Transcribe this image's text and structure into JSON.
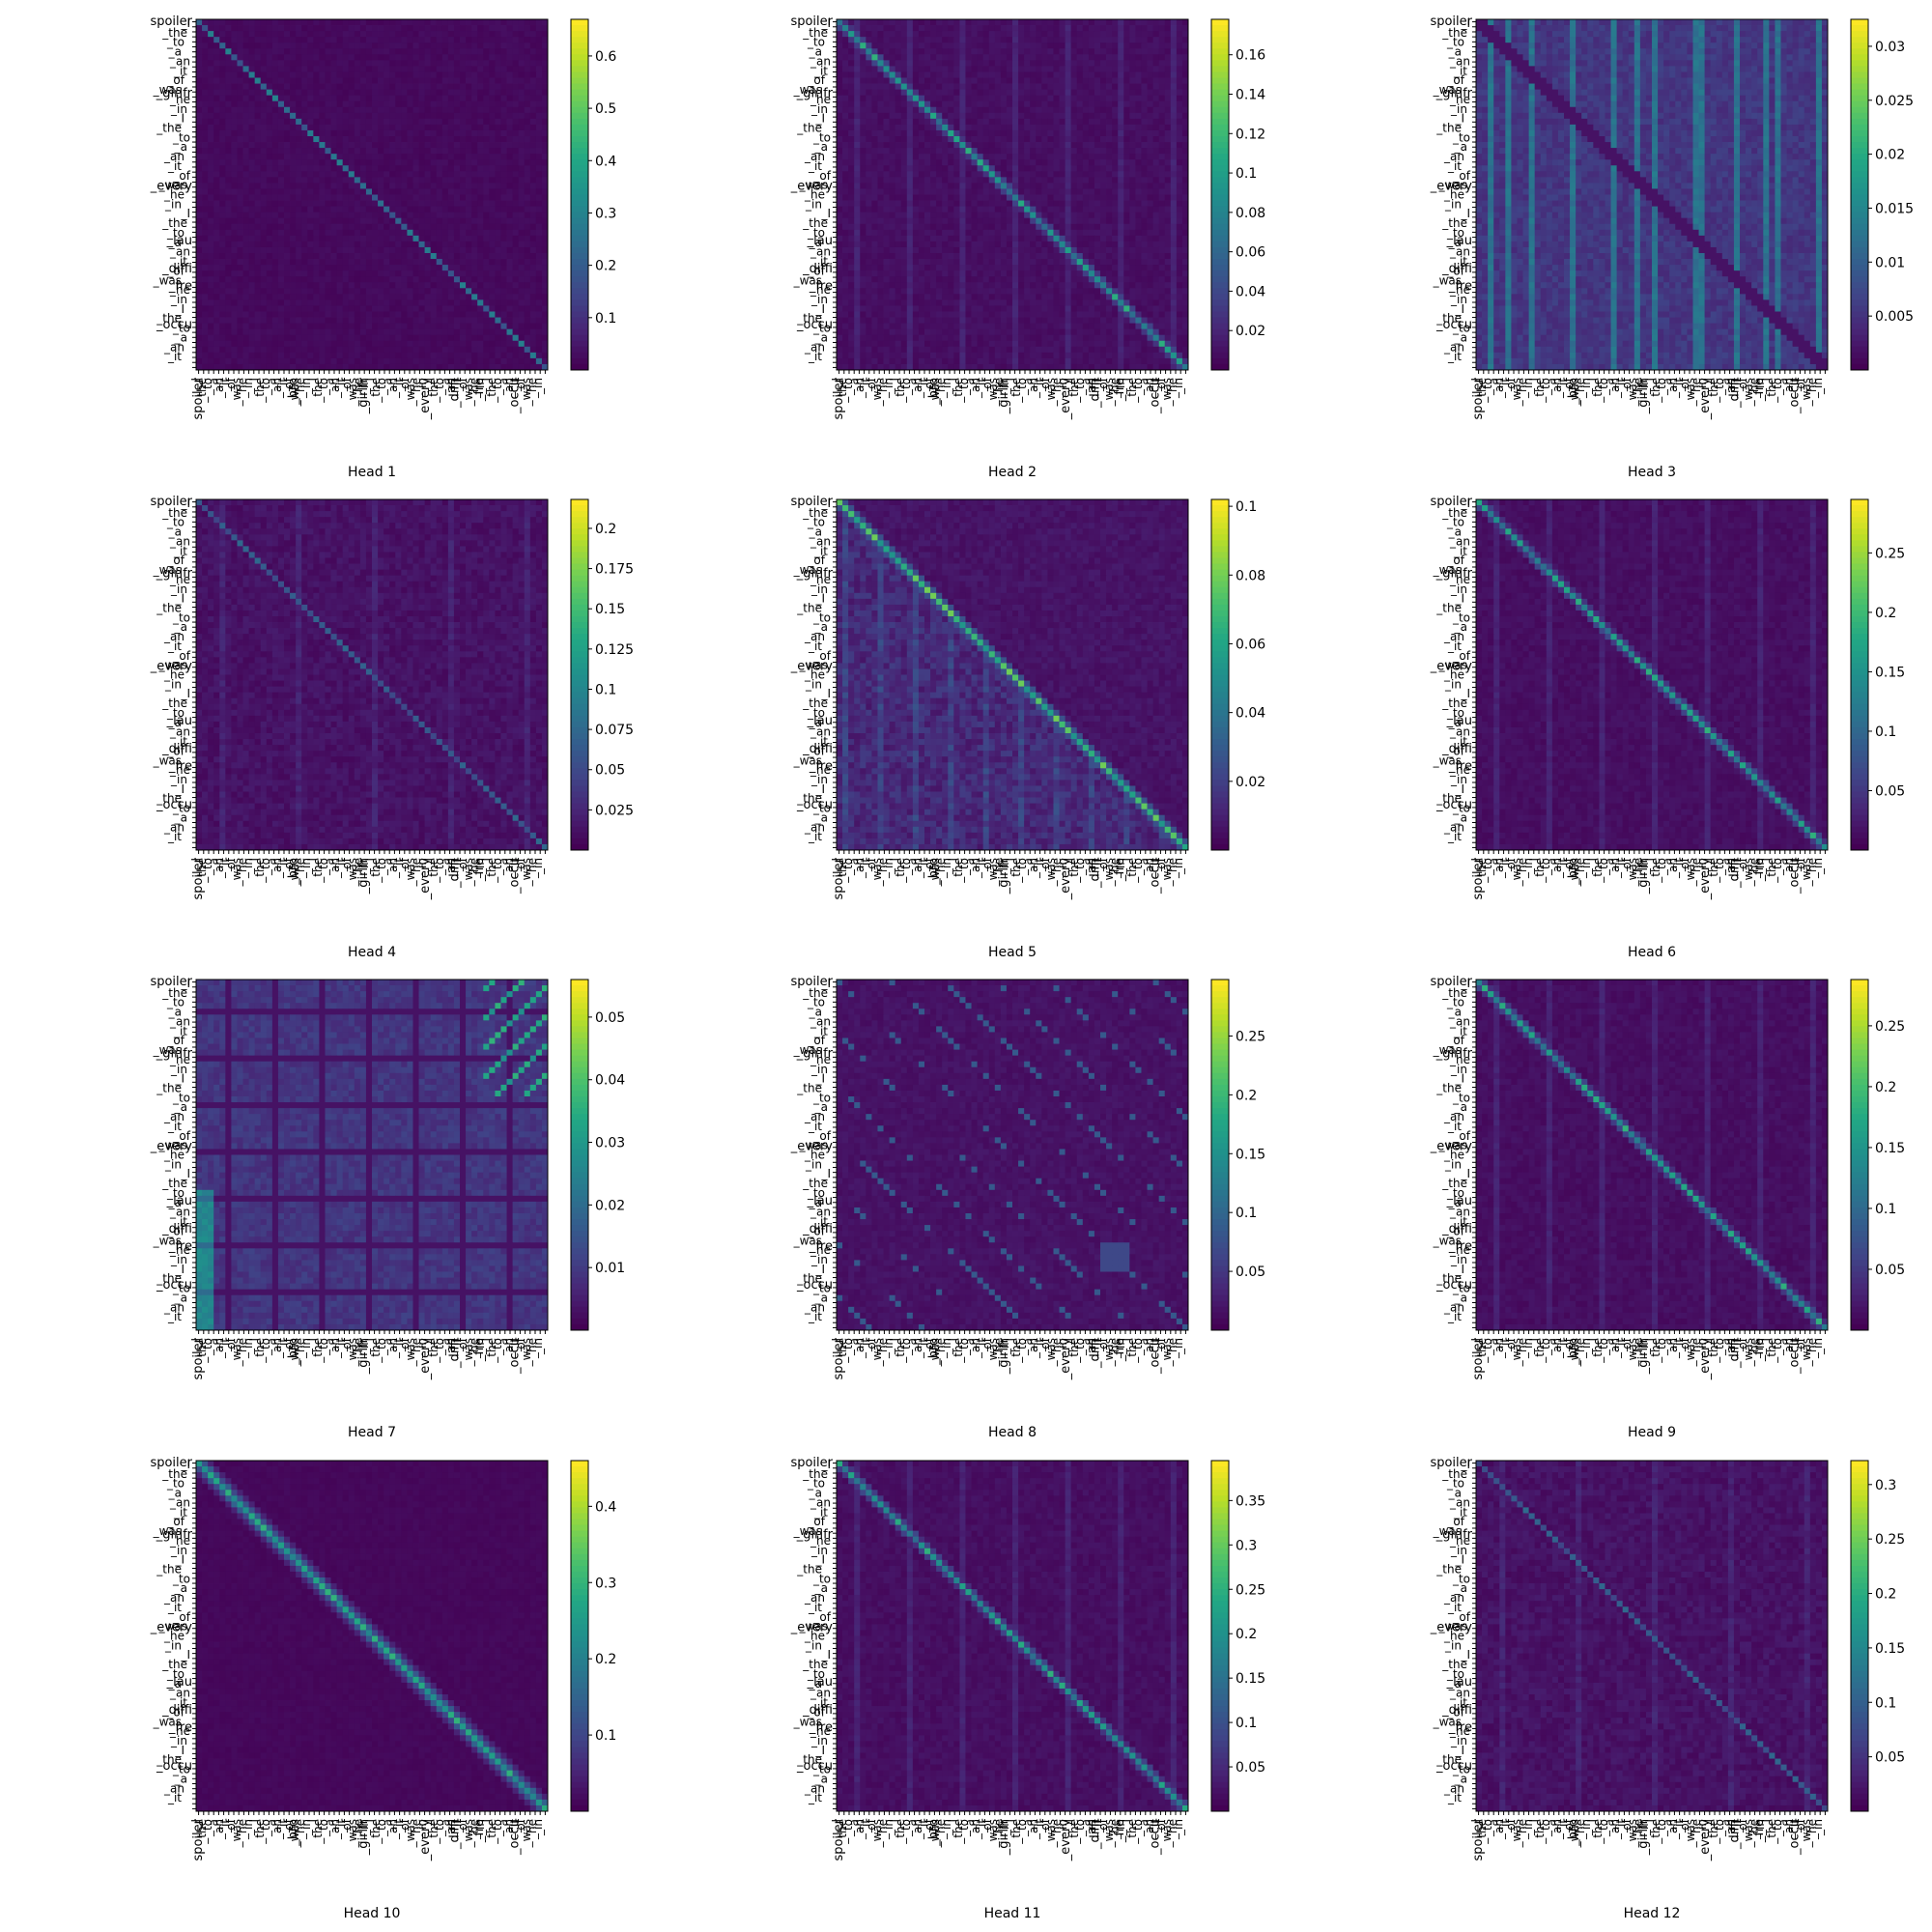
{
  "chart_data": [
    {
      "type": "heatmap",
      "title": "Head 1",
      "colormap": "viridis",
      "colorbar_ticks": [
        0.1,
        0.2,
        0.3,
        0.4,
        0.5,
        0.6
      ],
      "vmax": 0.67,
      "pattern": "diagonal-sparse",
      "ylabels": [
        "spoiler",
        "_girlfr",
        "_every",
        "_lau",
        "_diffi",
        "_fre",
        "_occu"
      ],
      "xlabels": [
        "spoiler",
        "_bro",
        "_girlfr",
        "_every",
        "_diffi",
        "_fre",
        "_occu"
      ]
    },
    {
      "type": "heatmap",
      "title": "Head 2",
      "colormap": "viridis",
      "colorbar_ticks": [
        0.02,
        0.04,
        0.06,
        0.08,
        0.1,
        0.12,
        0.14,
        0.16
      ],
      "vmax": 0.178,
      "pattern": "diagonal-blocks",
      "ylabels": [
        "spoiler",
        "_girlfr",
        "_every",
        "_lau",
        "_diffi",
        "_fre",
        "_occu"
      ],
      "xlabels": [
        "spoiler",
        "_bro",
        "_girlfr",
        "_every",
        "_diffi",
        "_fre",
        "_occu"
      ]
    },
    {
      "type": "heatmap",
      "title": "Head 3",
      "colormap": "viridis",
      "colorbar_ticks": [
        0.005,
        0.01,
        0.015,
        0.02,
        0.025,
        0.03
      ],
      "vmax": 0.0325,
      "pattern": "vertical-stripes",
      "ylabels": [
        "spoiler",
        "_girlfr",
        "_every",
        "_lau",
        "_diffi",
        "_fre",
        "_occu"
      ],
      "xlabels": [
        "spoiler",
        "_bro",
        "_girlfr",
        "_every",
        "_diffi",
        "_fre",
        "_occu"
      ]
    },
    {
      "type": "heatmap",
      "title": "Head 4",
      "colormap": "viridis",
      "colorbar_ticks": [
        0.025,
        0.05,
        0.075,
        0.1,
        0.125,
        0.15,
        0.175,
        0.2
      ],
      "vmax": 0.218,
      "pattern": "diagonal-thin",
      "ylabels": [
        "spoiler",
        "_girlfr",
        "_every",
        "_lau",
        "_diffi",
        "_fre",
        "_occu"
      ],
      "xlabels": [
        "spoiler",
        "_bro",
        "_girlfr",
        "_every",
        "_diffi",
        "_fre",
        "_occu"
      ]
    },
    {
      "type": "heatmap",
      "title": "Head 5",
      "colormap": "viridis",
      "colorbar_ticks": [
        0.02,
        0.04,
        0.06,
        0.08,
        0.1
      ],
      "vmax": 0.102,
      "pattern": "lower-triangle",
      "ylabels": [
        "spoiler",
        "_girlfr",
        "_every",
        "_lau",
        "_diffi",
        "_fre",
        "_occu"
      ],
      "xlabels": [
        "spoiler",
        "_bro",
        "_girlfr",
        "_every",
        "_diffi",
        "_fre",
        "_occu"
      ]
    },
    {
      "type": "heatmap",
      "title": "Head 6",
      "colormap": "viridis",
      "colorbar_ticks": [
        0.05,
        0.1,
        0.15,
        0.2,
        0.25
      ],
      "vmax": 0.295,
      "pattern": "diagonal-blocks",
      "ylabels": [
        "spoiler",
        "_girlfr",
        "_every",
        "_lau",
        "_diffi",
        "_fre",
        "_occu"
      ],
      "xlabels": [
        "spoiler",
        "_bro",
        "_girlfr",
        "_every",
        "_diffi",
        "_fre",
        "_occu"
      ]
    },
    {
      "type": "heatmap",
      "title": "Head 7",
      "colormap": "viridis",
      "colorbar_ticks": [
        0.01,
        0.02,
        0.03,
        0.04,
        0.05
      ],
      "vmax": 0.056,
      "pattern": "grid-blocks",
      "ylabels": [
        "spoiler",
        "_girlfr",
        "_every",
        "_lau",
        "_diffi",
        "_fre",
        "_occu"
      ],
      "xlabels": [
        "spoiler",
        "_bro",
        "_girlfr",
        "_every",
        "_diffi",
        "_fre",
        "_occu"
      ]
    },
    {
      "type": "heatmap",
      "title": "Head 8",
      "colormap": "viridis",
      "colorbar_ticks": [
        0.05,
        0.1,
        0.15,
        0.2,
        0.25
      ],
      "vmax": 0.298,
      "pattern": "sparse-crosses",
      "ylabels": [
        "spoiler",
        "_girlfr",
        "_every",
        "_lau",
        "_diffi",
        "_fre",
        "_occu"
      ],
      "xlabels": [
        "spoiler",
        "_bro",
        "_girlfr",
        "_every",
        "_diffi",
        "_fre",
        "_occu"
      ]
    },
    {
      "type": "heatmap",
      "title": "Head 9",
      "colormap": "viridis",
      "colorbar_ticks": [
        0.05,
        0.1,
        0.15,
        0.2,
        0.25
      ],
      "vmax": 0.288,
      "pattern": "diagonal-blocks",
      "ylabels": [
        "spoiler",
        "_girlfr",
        "_every",
        "_lau",
        "_diffi",
        "_fre",
        "_occu"
      ],
      "xlabels": [
        "spoiler",
        "_bro",
        "_girlfr",
        "_every",
        "_diffi",
        "_fre",
        "_occu"
      ]
    },
    {
      "type": "heatmap",
      "title": "Head 10",
      "colormap": "viridis",
      "colorbar_ticks": [
        0.1,
        0.2,
        0.3,
        0.4
      ],
      "vmax": 0.46,
      "pattern": "diagonal-wide",
      "ylabels": [
        "spoiler",
        "_girlfr",
        "_every",
        "_lau",
        "_diffi",
        "_fre",
        "_occu"
      ],
      "xlabels": [
        "spoiler",
        "_bro",
        "_girlfr",
        "_every",
        "_diffi",
        "_fre",
        "_occu"
      ]
    },
    {
      "type": "heatmap",
      "title": "Head 11",
      "colormap": "viridis",
      "colorbar_ticks": [
        0.05,
        0.1,
        0.15,
        0.2,
        0.25,
        0.3,
        0.35
      ],
      "vmax": 0.395,
      "pattern": "diagonal-blocks",
      "ylabels": [
        "spoiler",
        "_girlfr",
        "_every",
        "_lau",
        "_diffi",
        "_fre",
        "_occu"
      ],
      "xlabels": [
        "spoiler",
        "_bro",
        "_girlfr",
        "_every",
        "_diffi",
        "_fre",
        "_occu"
      ]
    },
    {
      "type": "heatmap",
      "title": "Head 12",
      "colormap": "viridis",
      "colorbar_ticks": [
        0.05,
        0.1,
        0.15,
        0.2,
        0.25,
        0.3
      ],
      "vmax": 0.322,
      "pattern": "diagonal-thin",
      "ylabels": [
        "spoiler",
        "_girlfr",
        "_every",
        "_lau",
        "_diffi",
        "_fre",
        "_occu"
      ],
      "xlabels": [
        "spoiler",
        "_bro",
        "_girlfr",
        "_every",
        "_diffi",
        "_fre",
        "_occu"
      ]
    }
  ]
}
